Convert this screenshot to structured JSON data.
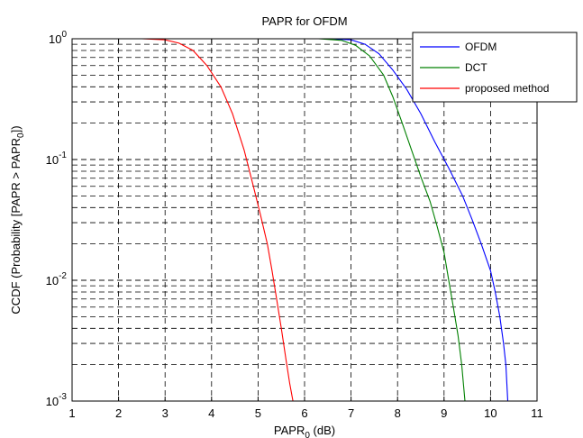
{
  "chart_data": {
    "type": "line",
    "title": "PAPR for OFDM",
    "xlabel": {
      "main": "PAPR",
      "sub": "0",
      "suffix": " (dB)"
    },
    "ylabel": {
      "main": "CCDF (Probability [PAPR > PAPR",
      "sub": "0",
      "suffix": "])"
    },
    "xlim": [
      1,
      11
    ],
    "ylim": [
      0.001,
      1
    ],
    "yscale": "log",
    "grid": true,
    "legend_position": "top-right",
    "x_ticks": [
      "1",
      "2",
      "3",
      "4",
      "5",
      "6",
      "7",
      "8",
      "9",
      "10",
      "11"
    ],
    "y_ticks": [
      {
        "value": 0.001,
        "base": "10",
        "exp": "-3"
      },
      {
        "value": 0.01,
        "base": "10",
        "exp": "-2"
      },
      {
        "value": 0.1,
        "base": "10",
        "exp": "-1"
      },
      {
        "value": 1,
        "base": "10",
        "exp": "0"
      }
    ],
    "series": [
      {
        "name": "OFDM",
        "color": "#0000ff",
        "points": [
          [
            6.5,
            1
          ],
          [
            7.0,
            0.98
          ],
          [
            7.3,
            0.9
          ],
          [
            7.6,
            0.75
          ],
          [
            7.9,
            0.55
          ],
          [
            8.2,
            0.38
          ],
          [
            8.5,
            0.24
          ],
          [
            8.8,
            0.14
          ],
          [
            9.1,
            0.085
          ],
          [
            9.4,
            0.05
          ],
          [
            9.6,
            0.032
          ],
          [
            9.8,
            0.02
          ],
          [
            10.0,
            0.012
          ],
          [
            10.1,
            0.008
          ],
          [
            10.2,
            0.005
          ],
          [
            10.28,
            0.003
          ],
          [
            10.33,
            0.002
          ],
          [
            10.37,
            0.001
          ]
        ]
      },
      {
        "name": "DCT",
        "color": "#008000",
        "points": [
          [
            6.3,
            1
          ],
          [
            6.8,
            0.97
          ],
          [
            7.1,
            0.88
          ],
          [
            7.4,
            0.72
          ],
          [
            7.7,
            0.5
          ],
          [
            7.9,
            0.33
          ],
          [
            8.1,
            0.2
          ],
          [
            8.3,
            0.12
          ],
          [
            8.5,
            0.072
          ],
          [
            8.7,
            0.045
          ],
          [
            8.85,
            0.028
          ],
          [
            9.0,
            0.017
          ],
          [
            9.1,
            0.01
          ],
          [
            9.2,
            0.006
          ],
          [
            9.3,
            0.0035
          ],
          [
            9.38,
            0.002
          ],
          [
            9.45,
            0.001
          ]
        ]
      },
      {
        "name": "proposed method",
        "color": "#ff0000",
        "points": [
          [
            2.5,
            1
          ],
          [
            3.0,
            0.98
          ],
          [
            3.3,
            0.92
          ],
          [
            3.6,
            0.8
          ],
          [
            3.9,
            0.6
          ],
          [
            4.2,
            0.4
          ],
          [
            4.45,
            0.24
          ],
          [
            4.7,
            0.12
          ],
          [
            4.9,
            0.06
          ],
          [
            5.05,
            0.035
          ],
          [
            5.2,
            0.02
          ],
          [
            5.3,
            0.012
          ],
          [
            5.4,
            0.007
          ],
          [
            5.5,
            0.004
          ],
          [
            5.6,
            0.0022
          ],
          [
            5.68,
            0.0014
          ],
          [
            5.75,
            0.001
          ]
        ]
      }
    ]
  }
}
